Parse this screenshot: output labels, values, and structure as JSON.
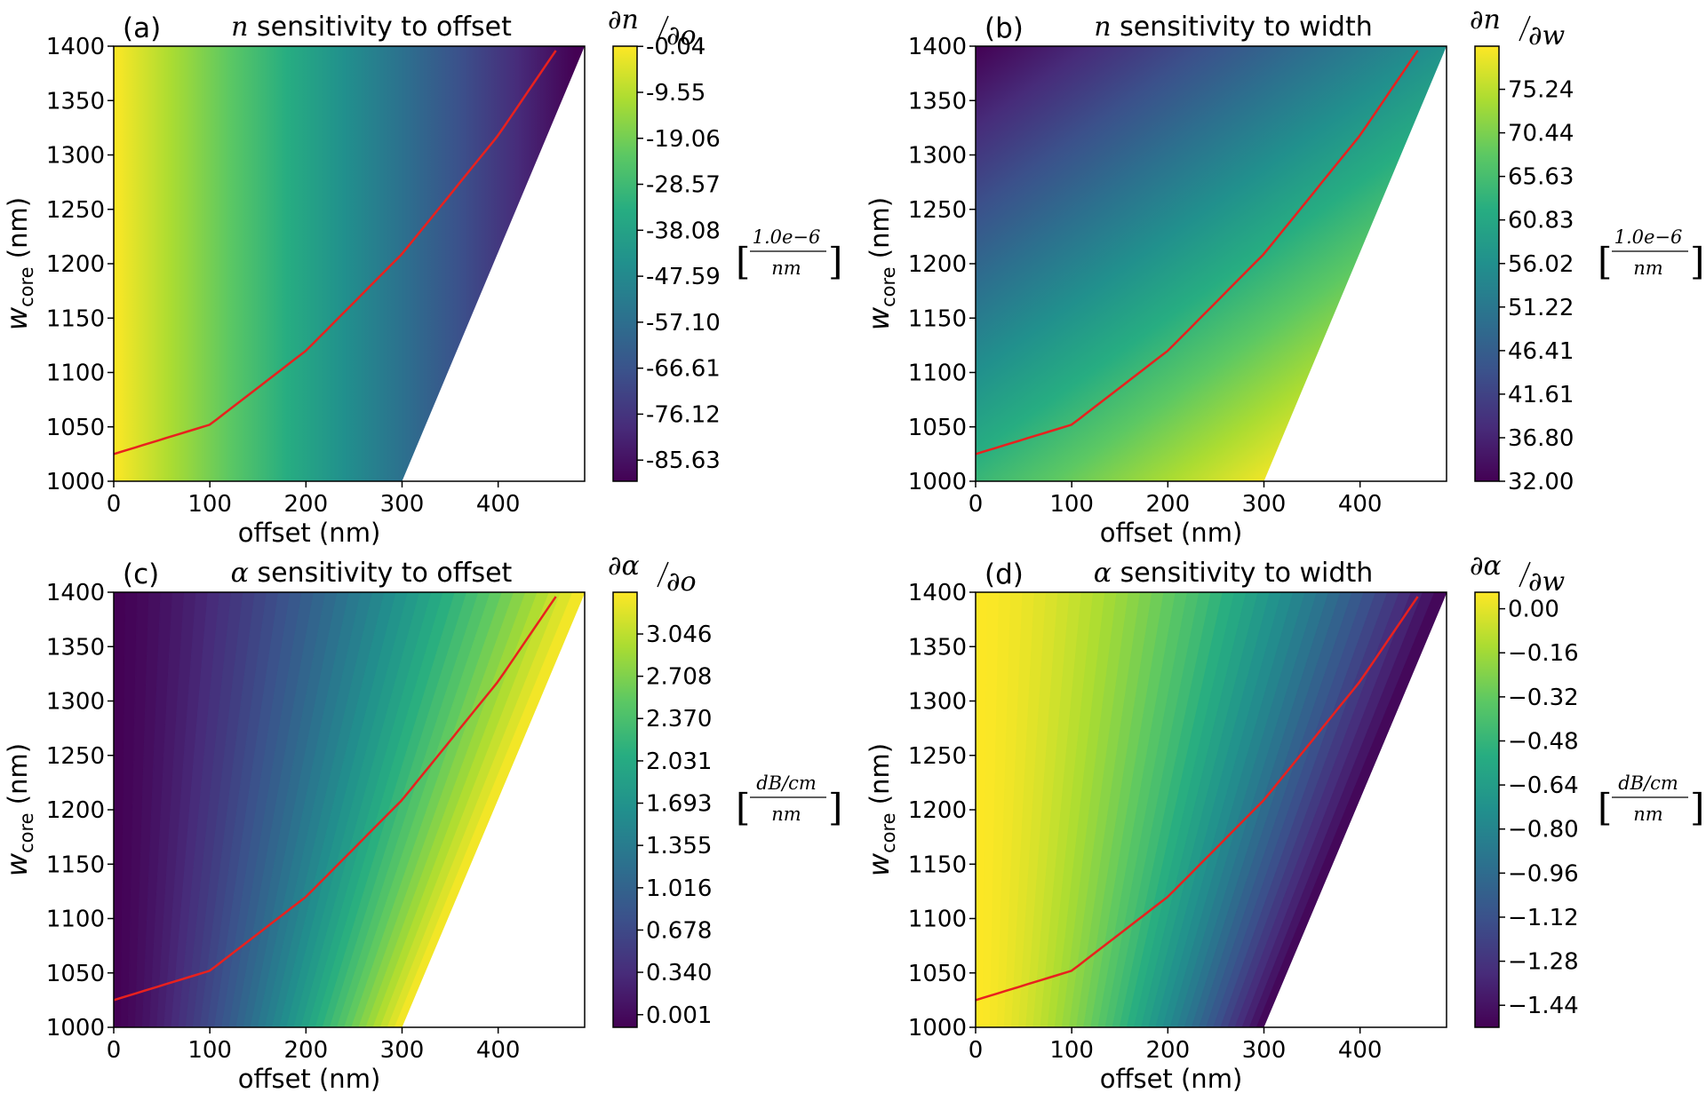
{
  "chart_data": [
    {
      "type": "heatmap",
      "panel": "(a)",
      "title": "n sensitivity to offset",
      "title_var": "n",
      "title_rest": " sensitivity to offset",
      "xlabel": "offset (nm)",
      "ylabel_main": "w",
      "ylabel_sub": "core",
      "ylabel_unit": " (nm)",
      "xlim": [
        0,
        490
      ],
      "ylim": [
        1000,
        1400
      ],
      "xticks": [
        "0",
        "100",
        "200",
        "300",
        "400"
      ],
      "yticks": [
        "1000",
        "1050",
        "1100",
        "1150",
        "1200",
        "1250",
        "1300",
        "1350",
        "1400"
      ],
      "colorbar_ticks": [
        "-0.04",
        "-9.55",
        "-19.06",
        "-28.57",
        "-38.08",
        "-47.59",
        "-57.10",
        "-66.61",
        "-76.12",
        "-85.63"
      ],
      "colorbar_range": [
        -90,
        0
      ],
      "colorbar_label_num": "∂n",
      "colorbar_label_den": "∂o",
      "unit_num": "1.0e−6",
      "unit_den": "nm",
      "gradient": "offset",
      "direction": "decreasing",
      "colormap": "viridis",
      "valid_region": "offset ≤ (w_core − 1000) × 0.475 + 300",
      "curve_color": "#e8211e",
      "curve": {
        "x": [
          0,
          100,
          200,
          300,
          400,
          460
        ],
        "y": [
          1025,
          1052,
          1120,
          1209,
          1318,
          1396
        ]
      }
    },
    {
      "type": "heatmap",
      "panel": "(b)",
      "title": "n sensitivity to width",
      "title_var": "n",
      "title_rest": " sensitivity to width",
      "xlabel": "offset (nm)",
      "ylabel_main": "w",
      "ylabel_sub": "core",
      "ylabel_unit": " (nm)",
      "xlim": [
        0,
        490
      ],
      "ylim": [
        1000,
        1400
      ],
      "xticks": [
        "0",
        "100",
        "200",
        "300",
        "400"
      ],
      "yticks": [
        "1000",
        "1050",
        "1100",
        "1150",
        "1200",
        "1250",
        "1300",
        "1350",
        "1400"
      ],
      "colorbar_ticks": [
        "75.24",
        "70.44",
        "65.63",
        "60.83",
        "56.02",
        "51.22",
        "46.41",
        "41.61",
        "36.80",
        "32.00"
      ],
      "colorbar_range": [
        32.0,
        80.0
      ],
      "colorbar_label_num": "∂n",
      "colorbar_label_den": "∂w",
      "unit_num": "1.0e−6",
      "unit_den": "nm",
      "gradient": "width-offset",
      "direction": "increasing",
      "colormap": "viridis",
      "valid_region": "offset ≤ (w_core − 1000) × 0.475 + 300",
      "curve_color": "#e8211e",
      "curve": {
        "x": [
          0,
          100,
          200,
          300,
          400,
          460
        ],
        "y": [
          1025,
          1052,
          1120,
          1209,
          1318,
          1396
        ]
      }
    },
    {
      "type": "heatmap",
      "panel": "(c)",
      "title": "α  sensitivity to offset",
      "title_var": "α",
      "title_rest": "  sensitivity to offset",
      "xlabel": "offset (nm)",
      "ylabel_main": "w",
      "ylabel_sub": "core",
      "ylabel_unit": " (nm)",
      "xlim": [
        0,
        490
      ],
      "ylim": [
        1000,
        1400
      ],
      "xticks": [
        "0",
        "100",
        "200",
        "300",
        "400"
      ],
      "yticks": [
        "1000",
        "1050",
        "1100",
        "1150",
        "1200",
        "1250",
        "1300",
        "1350",
        "1400"
      ],
      "colorbar_ticks": [
        "3.046",
        "2.708",
        "2.370",
        "2.031",
        "1.693",
        "1.355",
        "1.016",
        "0.678",
        "0.340",
        "0.001"
      ],
      "colorbar_range": [
        -0.1,
        3.38
      ],
      "colorbar_label_num": "∂α",
      "colorbar_label_den": "∂o",
      "unit_num": "dB/cm",
      "unit_den": "nm",
      "gradient": "relative-offset",
      "direction": "increasing",
      "colormap": "viridis",
      "valid_region": "offset ≤ (w_core − 1000) × 0.475 + 300",
      "curve_color": "#e8211e",
      "curve": {
        "x": [
          0,
          100,
          200,
          300,
          400,
          460
        ],
        "y": [
          1025,
          1052,
          1120,
          1209,
          1318,
          1396
        ]
      }
    },
    {
      "type": "heatmap",
      "panel": "(d)",
      "title": "α sensitivity to width",
      "title_var": "α",
      "title_rest": " sensitivity to width",
      "xlabel": "offset (nm)",
      "ylabel_main": "w",
      "ylabel_sub": "core",
      "ylabel_unit": " (nm)",
      "xlim": [
        0,
        490
      ],
      "ylim": [
        1000,
        1400
      ],
      "xticks": [
        "0",
        "100",
        "200",
        "300",
        "400"
      ],
      "yticks": [
        "1000",
        "1050",
        "1100",
        "1150",
        "1200",
        "1250",
        "1300",
        "1350",
        "1400"
      ],
      "colorbar_ticks": [
        "0.00",
        "−0.16",
        "−0.32",
        "−0.48",
        "−0.64",
        "−0.80",
        "−0.96",
        "−1.12",
        "−1.28",
        "−1.44"
      ],
      "colorbar_range": [
        -1.52,
        0.06
      ],
      "colorbar_label_num": "∂α",
      "colorbar_label_den": "∂w",
      "unit_num": "dB/cm",
      "unit_den": "nm",
      "gradient": "relative-offset",
      "direction": "decreasing",
      "colormap": "viridis",
      "valid_region": "offset ≤ (w_core − 1000) × 0.475 + 300",
      "curve_color": "#e8211e",
      "curve": {
        "x": [
          0,
          100,
          200,
          300,
          400,
          460
        ],
        "y": [
          1025,
          1052,
          1120,
          1209,
          1318,
          1396
        ]
      }
    }
  ]
}
